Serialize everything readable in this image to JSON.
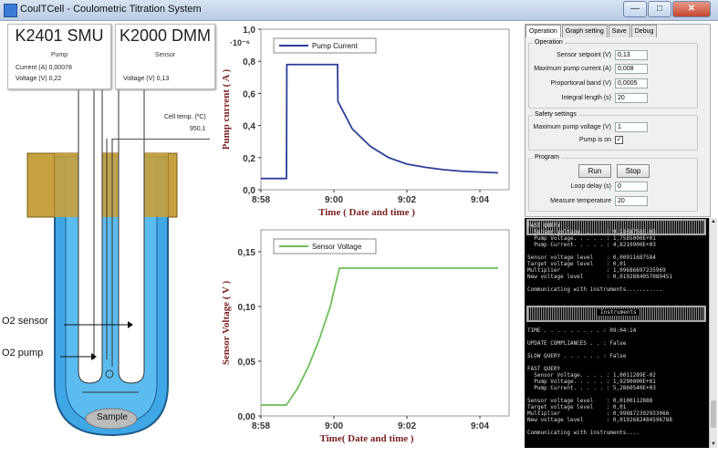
{
  "window": {
    "title": "CoulTCell - Coulometric Titration System"
  },
  "pump_instrument": {
    "name": "K2401 SMU",
    "role": "Pump",
    "current_label": "Current (A)",
    "current_value": "0,00078",
    "voltage_label": "Voltage (V)",
    "voltage_value": "0,22"
  },
  "sensor_instrument": {
    "name": "K2000 DMM",
    "role": "Sensor",
    "voltage_label": "Voltage (V)",
    "voltage_value": "0,13"
  },
  "cell_temp": {
    "label": "Cell temp. (ºC)",
    "value": "950,1"
  },
  "diagram_labels": {
    "o2_sensor": "O2 sensor",
    "o2_pump": "O2 pump",
    "sample": "Sample"
  },
  "chart_data": [
    {
      "type": "line",
      "ylabel": "Pump current ( A )",
      "xlabel": "Time ( Date and time )",
      "multiplier": "·10⁻⁶",
      "y_ticks": [
        "1,0",
        "0,8",
        "0,6",
        "0,4",
        "0,2",
        "0,0"
      ],
      "x_ticks": [
        "8:58",
        "9:00",
        "9:02",
        "9:04"
      ],
      "ylim": [
        0,
        1.0
      ],
      "xlim_minutes": [
        0,
        6.8
      ],
      "series": [
        {
          "name": "Pump Current",
          "color": "#2c3f97",
          "x": [
            0,
            0.7,
            0.71,
            2.1,
            2.11,
            2.5,
            3.0,
            3.5,
            4.0,
            4.5,
            5.0,
            5.5,
            6.0,
            6.5
          ],
          "y": [
            0.07,
            0.07,
            0.78,
            0.78,
            0.55,
            0.38,
            0.27,
            0.2,
            0.16,
            0.14,
            0.125,
            0.115,
            0.11,
            0.105
          ]
        }
      ]
    },
    {
      "type": "line",
      "ylabel": "Sensor Voltage ( V )",
      "xlabel": "Time( Date and time )",
      "y_ticks": [
        "0,15",
        "0,10",
        "0,05",
        "0,00"
      ],
      "x_ticks": [
        "8:58",
        "9:00",
        "9:02",
        "9:04"
      ],
      "ylim": [
        0,
        0.17
      ],
      "xlim_minutes": [
        0,
        6.8
      ],
      "series": [
        {
          "name": "Sensor Voltage",
          "color": "#6dbf5a",
          "x": [
            0,
            0.7,
            1.0,
            1.3,
            1.6,
            1.9,
            2.15,
            2.16,
            6.5
          ],
          "y": [
            0.01,
            0.01,
            0.025,
            0.045,
            0.07,
            0.1,
            0.135,
            0.135,
            0.135
          ]
        }
      ]
    }
  ],
  "panel": {
    "tabs": [
      "Operation",
      "Graph setting",
      "Save",
      "Debug"
    ],
    "operation": {
      "title": "Operation",
      "sensor_setpoint_label": "Sensor setpoint (V)",
      "sensor_setpoint": "0,13",
      "max_pump_current_label": "Maximum pump current (A)",
      "max_pump_current": "0,008",
      "prop_band_label": "Proportional band (V)",
      "prop_band": "0,0005",
      "integral_label": "Integral length (s)",
      "integral": "20"
    },
    "safety": {
      "title": "Safety settings",
      "max_pump_voltage_label": "Maximum pump voltage (V)",
      "max_pump_voltage": "1",
      "pump_on_label": "Pump is on",
      "pump_on": "✓"
    },
    "program": {
      "title": "Program",
      "run_label": "Run",
      "stop_label": "Stop",
      "loop_delay_label": "Loop delay (s)",
      "loop_delay": "0",
      "measure_temp_label": "Measure temperature",
      "measure_temp": "20"
    }
  },
  "console": {
    "lines_top": [
      "FAST QUERY",
      "  Sensor Voltage. . . . : 9,1168758E-03",
      "  Pump Voltage. . . . . : 1,7585000E+01",
      "  Pump Current. . . . . : 4,8210900E+03",
      "",
      "Sensor voltage level    : 0,00911687584",
      "Target voltage level    : 0,01",
      "Multiplier              : 1,09686697235969",
      "New voltage level       : 0,0192884057089451",
      "",
      "Communicating with instruments..........."
    ],
    "instruments_label": "Instruments",
    "lines_mid": [
      "TIME . . . . . . . . . : 09:04:14",
      "",
      "UPDATE COMPLIANCES . . : False",
      "",
      "SLOW QUERY . . . . . . : False",
      "",
      "FAST QUERY",
      "  Sensor Voltage. . . . : 1,0011289E-02",
      "  Pump Voltage. . . . . : 1,9290000E+01",
      "  Pump Current. . . . . : 5,2860540E+03",
      "",
      "Sensor voltage level    : 0,0100112888",
      "Target voltage level    : 0,01",
      "Multiplier              : 0,998872392933066",
      "New voltage level       : 0,0192682484596788",
      "",
      "Communicating with instruments...."
    ]
  }
}
